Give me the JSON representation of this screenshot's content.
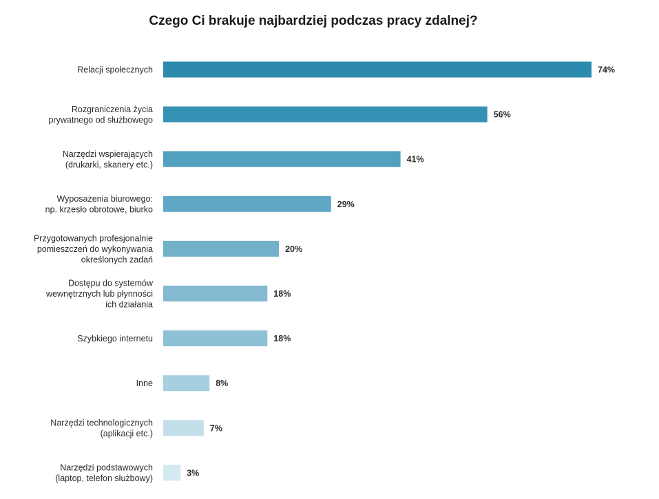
{
  "chart_data": {
    "type": "bar",
    "orientation": "horizontal",
    "title": "Czego Ci brakuje najbardziej podczas pracy zdalnej?",
    "xlabel": "",
    "ylabel": "",
    "xlim": [
      0,
      74
    ],
    "grid": false,
    "legend": "none",
    "unit": "%",
    "categories": [
      [
        "Relacji społecznych"
      ],
      [
        "Rozgraniczenia życia",
        "prywatnego od służbowego"
      ],
      [
        "Narzędzi wspierających",
        "(drukarki, skanery etc.)"
      ],
      [
        "Wyposażenia biurowego:",
        "np. krzesło obrotowe, biurko"
      ],
      [
        "Przygotowanych profesjonalnie",
        "pomieszczeń do wykonywania",
        "określonych zadań"
      ],
      [
        "Dostępu do systemów",
        "wewnętrznych lub płynności",
        "ich działania"
      ],
      [
        "Szybkiego internetu"
      ],
      [
        "Inne"
      ],
      [
        "Narzędzi technologicznych",
        "(aplikacji etc.)"
      ],
      [
        "Narzędzi podstawowych",
        "(laptop, telefon służbowy)"
      ]
    ],
    "values": [
      74,
      56,
      41,
      29,
      20,
      18,
      18,
      8,
      7,
      3
    ],
    "value_labels": [
      "74%",
      "56%",
      "41%",
      "29%",
      "20%",
      "18%",
      "18%",
      "8%",
      "7%",
      "3%"
    ],
    "colors": [
      "#2b8aae",
      "#3592b5",
      "#52a0bf",
      "#5fa7c4",
      "#73b1cb",
      "#83b9d1",
      "#8fc1d6",
      "#a6d0e0",
      "#c3e0ea",
      "#d4e9f0"
    ]
  }
}
